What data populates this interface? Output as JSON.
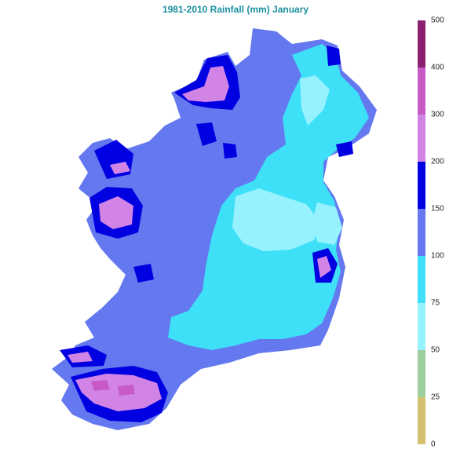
{
  "title": "1981-2010 Rainfall (mm) January",
  "legend": {
    "bands": [
      {
        "from": 0,
        "to": 25,
        "color": "#d4c070"
      },
      {
        "from": 25,
        "to": 50,
        "color": "#9ccf9c"
      },
      {
        "from": 50,
        "to": 75,
        "color": "#96f2ff"
      },
      {
        "from": 75,
        "to": 100,
        "color": "#3ee0f8"
      },
      {
        "from": 100,
        "to": 150,
        "color": "#6478f0"
      },
      {
        "from": 150,
        "to": 200,
        "color": "#0000e0"
      },
      {
        "from": 200,
        "to": 300,
        "color": "#d184e6"
      },
      {
        "from": 300,
        "to": 400,
        "color": "#c85ac8"
      },
      {
        "from": 400,
        "to": 500,
        "color": "#8c2070"
      }
    ],
    "ticks": [
      "0",
      "25",
      "50",
      "75",
      "100",
      "150",
      "200",
      "300",
      "400",
      "500"
    ]
  },
  "map": {
    "region": "Ireland",
    "colors": {
      "base": "#6478f0",
      "dry": "#3ee0f8",
      "drier": "#96f2ff",
      "wet": "#0000e0",
      "wetter": "#d184e6",
      "wettest": "#c85ac8"
    }
  }
}
